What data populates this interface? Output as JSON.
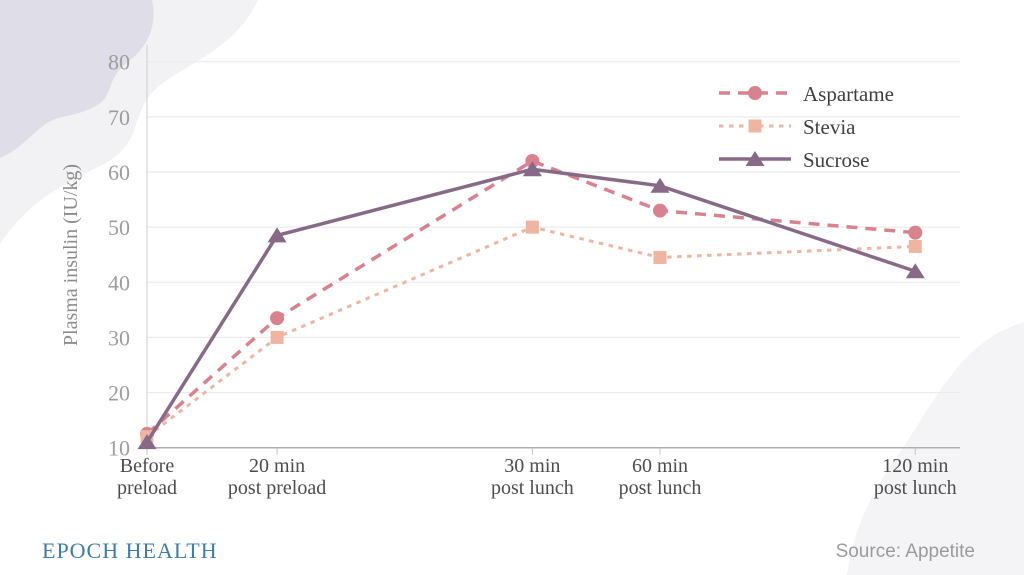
{
  "page": {
    "brand": "EPOCH HEALTH",
    "brand_color": "#3d7ea6",
    "source": "Source: Appetite",
    "decor_colors": {
      "top_left_outer_blob": "#f2f2f5",
      "top_left_inner_blob": "#dfdee8",
      "bottom_right_blob": "#f4f4f6"
    }
  },
  "chart_data": {
    "type": "line",
    "title": "",
    "xlabel": "",
    "ylabel": "Plasma insulin (IU/kg)",
    "ylim": [
      10,
      84
    ],
    "yticks": [
      10,
      20,
      30,
      40,
      50,
      60,
      70,
      80
    ],
    "grid": true,
    "legend_position": "top-right",
    "categories": [
      [
        "Before",
        "preload"
      ],
      [
        "20 min",
        "post preload"
      ],
      [
        "30 min",
        "post lunch"
      ],
      [
        "60 min",
        "post lunch"
      ],
      [
        "120 min",
        "post lunch"
      ]
    ],
    "series": [
      {
        "name": "Aspartame",
        "color": "#d9828e",
        "line_style": "dashed",
        "marker": "circle",
        "values": [
          12.5,
          33.5,
          62,
          53,
          49
        ]
      },
      {
        "name": "Stevia",
        "color": "#efb5a0",
        "line_style": "dotted",
        "marker": "square",
        "values": [
          12,
          30,
          50,
          44.5,
          46.5
        ]
      },
      {
        "name": "Sucrose",
        "color": "#876a87",
        "line_style": "solid",
        "marker": "triangle",
        "values": [
          11,
          48.5,
          60.5,
          57.5,
          42
        ]
      }
    ],
    "axis_colors": {
      "tick_label": "#9d9d9d",
      "category_label": "#4d4d4d",
      "legend_label": "#3f3f3f",
      "axis_line": "#b0aeb0",
      "gridline": "#ebebeb"
    }
  }
}
